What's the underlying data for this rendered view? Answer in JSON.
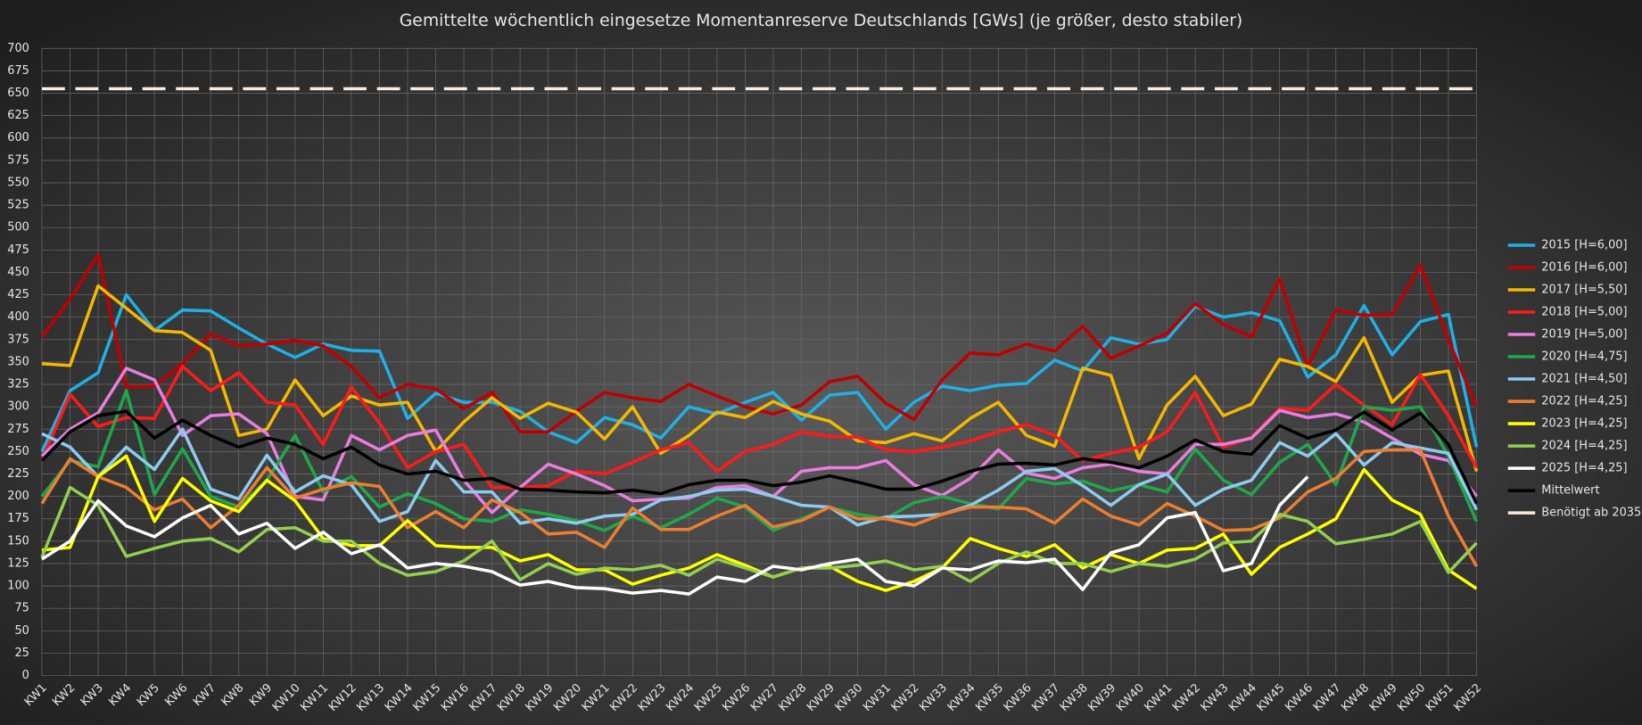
{
  "chart_data": {
    "type": "line",
    "title": "Gemittelte wöchentlich eingesetze Momentanreserve Deutschlands [GWs] (je größer, desto stabiler)",
    "categories": [
      "KW1",
      "KW2",
      "KW3",
      "KW4",
      "KW5",
      "KW6",
      "KW7",
      "KW8",
      "KW9",
      "KW10",
      "KW11",
      "KW12",
      "KW13",
      "KW14",
      "KW15",
      "KW16",
      "KW17",
      "KW18",
      "KW19",
      "KW20",
      "KW21",
      "KW22",
      "KW23",
      "KW24",
      "KW25",
      "KW26",
      "KW27",
      "KW28",
      "KW29",
      "KW30",
      "KW31",
      "KW32",
      "KW33",
      "KW34",
      "KW35",
      "KW36",
      "KW37",
      "KW38",
      "KW39",
      "KW40",
      "KW41",
      "KW42",
      "KW43",
      "KW44",
      "KW45",
      "KW46",
      "KW47",
      "KW48",
      "KW49",
      "KW50",
      "KW51",
      "KW52"
    ],
    "ylim": [
      0,
      700
    ],
    "yticks": [
      0,
      25,
      50,
      75,
      100,
      125,
      150,
      175,
      200,
      225,
      250,
      275,
      300,
      325,
      350,
      375,
      400,
      425,
      450,
      475,
      500,
      525,
      550,
      575,
      600,
      625,
      650,
      675,
      700
    ],
    "grid": true,
    "legend": "right",
    "series": [
      {
        "name": "2015 [H=6,00]",
        "color": "#1fb0e6",
        "values": [
          250,
          318,
          338,
          425,
          385,
          408,
          407,
          388,
          370,
          355,
          370,
          363,
          362,
          287,
          315,
          305,
          305,
          295,
          272,
          260,
          288,
          280,
          265,
          300,
          292,
          305,
          316,
          285,
          313,
          316,
          275,
          305,
          323,
          318,
          324,
          326,
          352,
          340,
          377,
          370,
          375,
          412,
          400,
          405,
          396,
          333,
          358,
          413,
          358,
          395,
          403,
          255
        ]
      },
      {
        "name": "2016 [H=6,00]",
        "color": "#c00000",
        "values": [
          378,
          420,
          470,
          322,
          323,
          348,
          381,
          368,
          370,
          374,
          368,
          345,
          310,
          325,
          320,
          298,
          316,
          272,
          272,
          295,
          316,
          310,
          306,
          325,
          312,
          300,
          292,
          302,
          328,
          334,
          304,
          286,
          330,
          360,
          358,
          370,
          362,
          390,
          354,
          368,
          382,
          415,
          392,
          378,
          443,
          345,
          408,
          402,
          403,
          458,
          375,
          300
        ]
      },
      {
        "name": "2017 [H=5,50]",
        "color": "#f5b800",
        "values": [
          348,
          346,
          435,
          410,
          385,
          383,
          363,
          268,
          275,
          330,
          290,
          312,
          302,
          305,
          250,
          283,
          310,
          287,
          304,
          294,
          264,
          300,
          248,
          268,
          294,
          288,
          306,
          292,
          284,
          262,
          260,
          270,
          262,
          287,
          305,
          268,
          256,
          343,
          335,
          242,
          302,
          334,
          290,
          303,
          353,
          345,
          328,
          377,
          305,
          335,
          340,
          228
        ]
      },
      {
        "name": "2018 [H=5,00]",
        "color": "#ff1a1a",
        "values": [
          240,
          314,
          278,
          288,
          287,
          345,
          318,
          338,
          305,
          302,
          258,
          322,
          282,
          232,
          250,
          258,
          210,
          210,
          212,
          228,
          225,
          238,
          252,
          260,
          228,
          250,
          258,
          272,
          267,
          266,
          252,
          250,
          255,
          262,
          272,
          280,
          268,
          240,
          248,
          255,
          272,
          316,
          255,
          266,
          298,
          296,
          325,
          302,
          280,
          336,
          290,
          232
        ]
      },
      {
        "name": "2019 [H=5,00]",
        "color": "#e87ee0",
        "values": [
          245,
          275,
          293,
          343,
          330,
          268,
          290,
          292,
          270,
          200,
          196,
          268,
          252,
          268,
          274,
          218,
          182,
          210,
          236,
          225,
          212,
          195,
          197,
          198,
          210,
          212,
          200,
          228,
          232,
          232,
          240,
          213,
          201,
          220,
          252,
          226,
          220,
          232,
          236,
          228,
          225,
          258,
          258,
          265,
          296,
          288,
          292,
          283,
          265,
          247,
          240,
          200
        ]
      },
      {
        "name": "2020 [H=4,75]",
        "color": "#1fa84a",
        "values": [
          200,
          240,
          233,
          318,
          202,
          253,
          200,
          188,
          218,
          268,
          205,
          222,
          188,
          203,
          192,
          175,
          172,
          185,
          180,
          173,
          162,
          178,
          165,
          180,
          198,
          188,
          162,
          175,
          188,
          180,
          175,
          193,
          200,
          192,
          186,
          220,
          214,
          217,
          206,
          213,
          205,
          253,
          218,
          202,
          238,
          258,
          213,
          300,
          296,
          300,
          245,
          172
        ]
      },
      {
        "name": "2021 [H=4,50]",
        "color": "#8ecbf0",
        "values": [
          270,
          255,
          222,
          255,
          230,
          275,
          208,
          197,
          246,
          205,
          223,
          213,
          172,
          183,
          240,
          205,
          205,
          170,
          175,
          170,
          178,
          180,
          196,
          200,
          207,
          208,
          200,
          190,
          188,
          168,
          177,
          178,
          180,
          190,
          207,
          228,
          231,
          212,
          190,
          213,
          225,
          190,
          208,
          218,
          260,
          245,
          270,
          235,
          260,
          254,
          248,
          185
        ]
      },
      {
        "name": "2022 [H=4,25]",
        "color": "#ed7d31",
        "values": [
          192,
          242,
          222,
          210,
          185,
          197,
          165,
          190,
          232,
          198,
          208,
          215,
          211,
          165,
          183,
          165,
          196,
          182,
          158,
          160,
          143,
          187,
          163,
          163,
          178,
          190,
          166,
          173,
          188,
          175,
          175,
          168,
          180,
          188,
          188,
          186,
          170,
          197,
          178,
          168,
          192,
          178,
          162,
          163,
          176,
          205,
          220,
          250,
          252,
          252,
          178,
          122
        ]
      },
      {
        "name": "2023 [H=4,25]",
        "color": "#ffff00",
        "values": [
          140,
          143,
          222,
          245,
          172,
          220,
          195,
          183,
          218,
          195,
          153,
          145,
          145,
          173,
          145,
          143,
          143,
          128,
          135,
          118,
          118,
          102,
          112,
          120,
          135,
          123,
          110,
          120,
          122,
          105,
          95,
          105,
          120,
          153,
          142,
          133,
          146,
          120,
          135,
          125,
          140,
          142,
          158,
          113,
          143,
          158,
          175,
          230,
          196,
          180,
          118,
          97
        ]
      },
      {
        "name": "2024 [H=4,25]",
        "color": "#92d050",
        "values": [
          132,
          210,
          190,
          133,
          142,
          150,
          153,
          138,
          163,
          165,
          150,
          150,
          125,
          112,
          116,
          128,
          150,
          107,
          125,
          113,
          120,
          118,
          123,
          112,
          130,
          120,
          110,
          120,
          120,
          123,
          128,
          118,
          122,
          105,
          125,
          138,
          125,
          125,
          116,
          125,
          122,
          130,
          148,
          150,
          180,
          172,
          147,
          152,
          158,
          172,
          115,
          148
        ]
      },
      {
        "name": "2025 [H=4,25]",
        "color": "#ffffff",
        "values": [
          130,
          150,
          195,
          167,
          155,
          176,
          190,
          158,
          170,
          142,
          160,
          136,
          146,
          120,
          125,
          122,
          116,
          101,
          105,
          98,
          97,
          92,
          95,
          91,
          110,
          105,
          122,
          118,
          125,
          130,
          105,
          100,
          120,
          118,
          128,
          126,
          130,
          96,
          137,
          146,
          176,
          182,
          117,
          125,
          190,
          222,
          null,
          null,
          null,
          null,
          null,
          null
        ]
      },
      {
        "name": "Mittelwert",
        "color": "#000000",
        "values": [
          240,
          272,
          290,
          295,
          265,
          285,
          268,
          255,
          265,
          258,
          242,
          255,
          235,
          225,
          228,
          218,
          220,
          208,
          207,
          205,
          204,
          207,
          203,
          213,
          218,
          218,
          212,
          216,
          223,
          216,
          208,
          208,
          217,
          228,
          236,
          237,
          235,
          242,
          238,
          232,
          245,
          263,
          250,
          247,
          279,
          265,
          274,
          294,
          274,
          293,
          258,
          192
        ]
      },
      {
        "name": "Benötigt ab 2035",
        "color": "#fde9d9",
        "dashed": true,
        "values": [
          655,
          655,
          655,
          655,
          655,
          655,
          655,
          655,
          655,
          655,
          655,
          655,
          655,
          655,
          655,
          655,
          655,
          655,
          655,
          655,
          655,
          655,
          655,
          655,
          655,
          655,
          655,
          655,
          655,
          655,
          655,
          655,
          655,
          655,
          655,
          655,
          655,
          655,
          655,
          655,
          655,
          655,
          655,
          655,
          655,
          655,
          655,
          655,
          655,
          655,
          655,
          655
        ]
      }
    ]
  }
}
